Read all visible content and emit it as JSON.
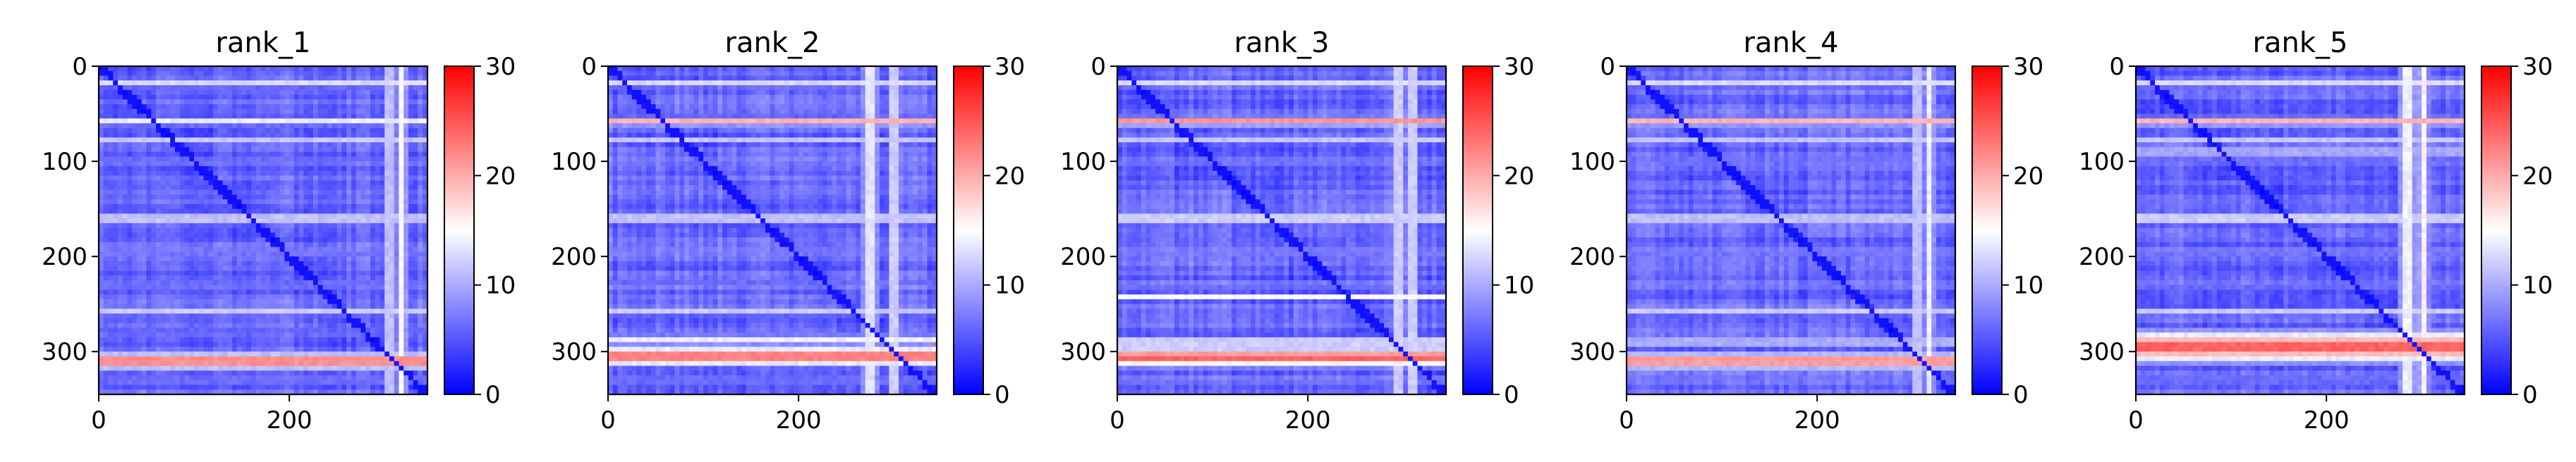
{
  "chart_data": [
    {
      "type": "heatmap",
      "title": "rank_1",
      "xlim": [
        0,
        345
      ],
      "ylim": [
        345,
        0
      ],
      "x_ticks": [
        0,
        200
      ],
      "y_ticks": [
        0,
        100,
        200,
        300
      ],
      "colorbar": {
        "min": 0,
        "max": 30,
        "ticks": [
          0,
          10,
          20,
          30
        ],
        "colormap": "bwr"
      },
      "colors": {
        "low": "#0000ff",
        "mid": "#ffffff",
        "high": "#ff0000"
      },
      "bands": [
        {
          "pos": 18,
          "v": 13,
          "w": 3
        },
        {
          "pos": 58,
          "v": 14,
          "w": 3
        },
        {
          "pos": 78,
          "v": 12,
          "w": 2
        },
        {
          "pos": 100,
          "v": 11,
          "w": 2
        },
        {
          "pos": 160,
          "v": 14,
          "w": 4
        },
        {
          "pos": 195,
          "v": 12,
          "w": 2
        },
        {
          "pos": 230,
          "v": 11,
          "w": 2
        },
        {
          "pos": 258,
          "v": 12,
          "w": 3
        },
        {
          "pos": 280,
          "v": 10,
          "w": 2
        },
        {
          "pos": 310,
          "v": 26,
          "w": 5
        },
        {
          "pos": 330,
          "v": 11,
          "w": 2
        }
      ],
      "column_bands": [
        {
          "pos": 305,
          "v": 14,
          "w": 4
        },
        {
          "pos": 318,
          "v": 15,
          "w": 4
        }
      ]
    },
    {
      "type": "heatmap",
      "title": "rank_2",
      "xlim": [
        0,
        345
      ],
      "ylim": [
        345,
        0
      ],
      "x_ticks": [
        0,
        200
      ],
      "y_ticks": [
        0,
        100,
        200,
        300
      ],
      "colorbar": {
        "min": 0,
        "max": 30,
        "ticks": [
          0,
          10,
          20,
          30
        ],
        "colormap": "bwr"
      },
      "colors": {
        "low": "#0000ff",
        "mid": "#ffffff",
        "high": "#ff0000"
      },
      "bands": [
        {
          "pos": 18,
          "v": 13,
          "w": 3
        },
        {
          "pos": 58,
          "v": 20,
          "w": 3
        },
        {
          "pos": 78,
          "v": 12,
          "w": 2
        },
        {
          "pos": 100,
          "v": 11,
          "w": 2
        },
        {
          "pos": 160,
          "v": 14,
          "w": 4
        },
        {
          "pos": 195,
          "v": 12,
          "w": 2
        },
        {
          "pos": 230,
          "v": 11,
          "w": 2
        },
        {
          "pos": 258,
          "v": 12,
          "w": 3
        },
        {
          "pos": 288,
          "v": 14,
          "w": 4
        },
        {
          "pos": 305,
          "v": 26,
          "w": 6
        },
        {
          "pos": 330,
          "v": 11,
          "w": 2
        }
      ],
      "column_bands": [
        {
          "pos": 275,
          "v": 15,
          "w": 6
        },
        {
          "pos": 300,
          "v": 15,
          "w": 4
        }
      ]
    },
    {
      "type": "heatmap",
      "title": "rank_3",
      "xlim": [
        0,
        345
      ],
      "ylim": [
        345,
        0
      ],
      "x_ticks": [
        0,
        200
      ],
      "y_ticks": [
        0,
        100,
        200,
        300
      ],
      "colorbar": {
        "min": 0,
        "max": 30,
        "ticks": [
          0,
          10,
          20,
          30
        ],
        "colormap": "bwr"
      },
      "colors": {
        "low": "#0000ff",
        "mid": "#ffffff",
        "high": "#ff0000"
      },
      "bands": [
        {
          "pos": 18,
          "v": 13,
          "w": 3
        },
        {
          "pos": 58,
          "v": 22,
          "w": 3
        },
        {
          "pos": 78,
          "v": 12,
          "w": 2
        },
        {
          "pos": 100,
          "v": 11,
          "w": 2
        },
        {
          "pos": 160,
          "v": 15,
          "w": 4
        },
        {
          "pos": 195,
          "v": 12,
          "w": 2
        },
        {
          "pos": 230,
          "v": 11,
          "w": 2
        },
        {
          "pos": 242,
          "v": 16,
          "w": 2
        },
        {
          "pos": 290,
          "v": 15,
          "w": 4
        },
        {
          "pos": 306,
          "v": 26,
          "w": 6
        },
        {
          "pos": 330,
          "v": 11,
          "w": 2
        }
      ],
      "column_bands": [
        {
          "pos": 295,
          "v": 15,
          "w": 4
        },
        {
          "pos": 310,
          "v": 15,
          "w": 4
        }
      ]
    },
    {
      "type": "heatmap",
      "title": "rank_4",
      "xlim": [
        0,
        345
      ],
      "ylim": [
        345,
        0
      ],
      "x_ticks": [
        0,
        200
      ],
      "y_ticks": [
        0,
        100,
        200,
        300
      ],
      "colorbar": {
        "min": 0,
        "max": 30,
        "ticks": [
          0,
          10,
          20,
          30
        ],
        "colormap": "bwr"
      },
      "colors": {
        "low": "#0000ff",
        "mid": "#ffffff",
        "high": "#ff0000"
      },
      "bands": [
        {
          "pos": 18,
          "v": 13,
          "w": 3
        },
        {
          "pos": 58,
          "v": 20,
          "w": 3
        },
        {
          "pos": 78,
          "v": 12,
          "w": 2
        },
        {
          "pos": 100,
          "v": 11,
          "w": 2
        },
        {
          "pos": 160,
          "v": 14,
          "w": 4
        },
        {
          "pos": 195,
          "v": 12,
          "w": 2
        },
        {
          "pos": 230,
          "v": 11,
          "w": 2
        },
        {
          "pos": 258,
          "v": 12,
          "w": 3
        },
        {
          "pos": 290,
          "v": 14,
          "w": 3
        },
        {
          "pos": 310,
          "v": 25,
          "w": 5
        },
        {
          "pos": 330,
          "v": 11,
          "w": 2
        }
      ],
      "column_bands": [
        {
          "pos": 305,
          "v": 14,
          "w": 4
        },
        {
          "pos": 318,
          "v": 14,
          "w": 4
        }
      ]
    },
    {
      "type": "heatmap",
      "title": "rank_5",
      "xlim": [
        0,
        345
      ],
      "ylim": [
        345,
        0
      ],
      "x_ticks": [
        0,
        200
      ],
      "y_ticks": [
        0,
        100,
        200,
        300
      ],
      "colorbar": {
        "min": 0,
        "max": 30,
        "ticks": [
          0,
          10,
          20,
          30
        ],
        "colormap": "bwr"
      },
      "colors": {
        "low": "#0000ff",
        "mid": "#ffffff",
        "high": "#ff0000"
      },
      "bands": [
        {
          "pos": 18,
          "v": 13,
          "w": 3
        },
        {
          "pos": 58,
          "v": 20,
          "w": 3
        },
        {
          "pos": 78,
          "v": 12,
          "w": 2
        },
        {
          "pos": 90,
          "v": 18,
          "w": 2
        },
        {
          "pos": 100,
          "v": 11,
          "w": 2
        },
        {
          "pos": 160,
          "v": 15,
          "w": 4
        },
        {
          "pos": 195,
          "v": 12,
          "w": 2
        },
        {
          "pos": 230,
          "v": 11,
          "w": 2
        },
        {
          "pos": 258,
          "v": 12,
          "w": 3
        },
        {
          "pos": 295,
          "v": 26,
          "w": 10
        },
        {
          "pos": 330,
          "v": 11,
          "w": 2
        }
      ],
      "column_bands": [
        {
          "pos": 285,
          "v": 16,
          "w": 6
        },
        {
          "pos": 302,
          "v": 16,
          "w": 4
        }
      ]
    }
  ]
}
